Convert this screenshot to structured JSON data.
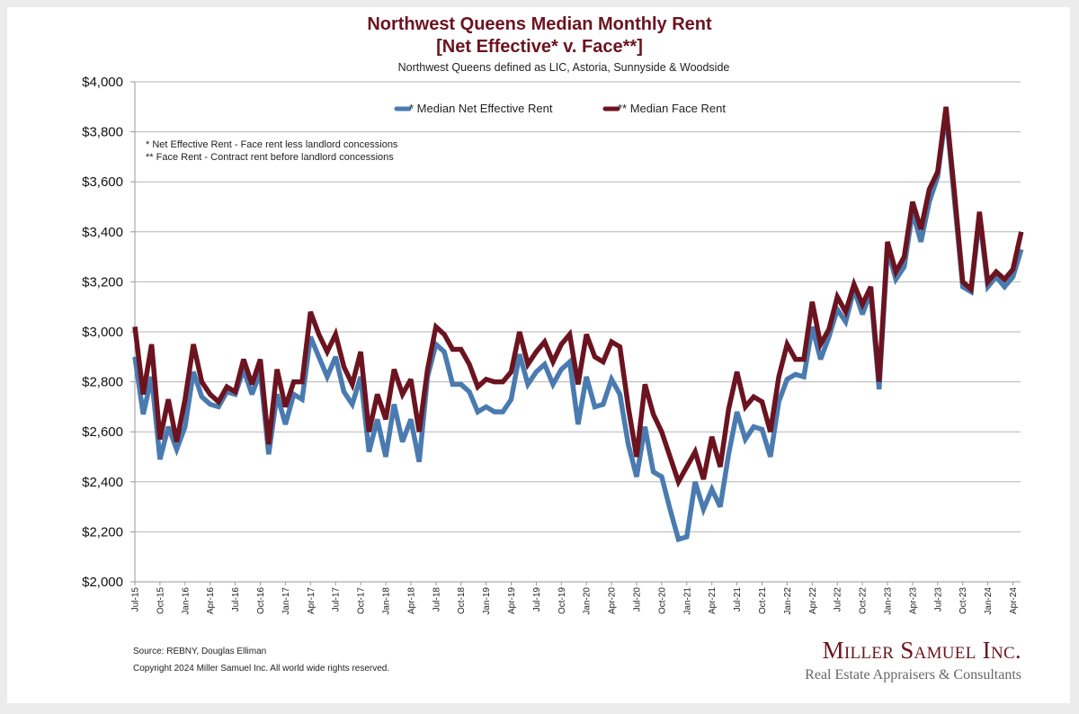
{
  "chart_data": {
    "type": "line",
    "title": "Northwest Queens Median Monthly Rent",
    "title_line2": "[Net Effective* v. Face**]",
    "subtitle": "Northwest Queens defined as LIC, Astoria, Sunnyside & Woodside",
    "xlabel": "",
    "ylabel": "",
    "ylim": [
      2000,
      4000
    ],
    "y_ticks": [
      "$2,000",
      "$2,200",
      "$2,400",
      "$2,600",
      "$2,800",
      "$3,000",
      "$3,200",
      "$3,400",
      "$3,600",
      "$3,800",
      "$4,000"
    ],
    "y_tick_values": [
      2000,
      2200,
      2400,
      2600,
      2800,
      3000,
      3200,
      3400,
      3600,
      3800,
      4000
    ],
    "grid": true,
    "legend_position": "top-center",
    "x_tick_labels": [
      "Jul-15",
      "Oct-15",
      "Jan-16",
      "Apr-16",
      "Jul-16",
      "Oct-16",
      "Jan-17",
      "Apr-17",
      "Jul-17",
      "Oct-17",
      "Jan-18",
      "Apr-18",
      "Jul-18",
      "Oct-18",
      "Jan-19",
      "Apr-19",
      "Jul-19",
      "Oct-19",
      "Jan-20",
      "Apr-20",
      "Jul-20",
      "Oct-20",
      "Jan-21",
      "Apr-21",
      "Jul-21",
      "Oct-21",
      "Jan-22",
      "Apr-22",
      "Jul-22",
      "Oct-22",
      "Jan-23",
      "Apr-23",
      "Jul-23",
      "Oct-23",
      "Jan-24",
      "Apr-24"
    ],
    "x_start": "Jul-15",
    "x_end": "May-24",
    "series": [
      {
        "name": "* Median Net Effective Rent",
        "color": "#4a7bb0",
        "values": [
          2900,
          2670,
          2820,
          2490,
          2620,
          2530,
          2620,
          2840,
          2740,
          2710,
          2700,
          2760,
          2750,
          2850,
          2750,
          2840,
          2510,
          2750,
          2630,
          2750,
          2730,
          2980,
          2900,
          2820,
          2900,
          2760,
          2710,
          2820,
          2520,
          2650,
          2500,
          2710,
          2560,
          2650,
          2480,
          2820,
          2950,
          2920,
          2790,
          2790,
          2760,
          2680,
          2700,
          2680,
          2680,
          2730,
          2910,
          2790,
          2840,
          2870,
          2790,
          2850,
          2880,
          2630,
          2820,
          2700,
          2710,
          2810,
          2750,
          2550,
          2420,
          2620,
          2440,
          2420,
          2290,
          2170,
          2180,
          2400,
          2290,
          2370,
          2300,
          2510,
          2680,
          2570,
          2620,
          2610,
          2500,
          2720,
          2810,
          2830,
          2820,
          3020,
          2890,
          2980,
          3090,
          3040,
          3170,
          3070,
          3160,
          2770,
          3330,
          3210,
          3260,
          3480,
          3360,
          3520,
          3620,
          3880,
          3530,
          3180,
          3160,
          3460,
          3180,
          3220,
          3180,
          3220,
          3330
        ]
      },
      {
        "name": "** Median Face Rent",
        "color": "#6b1420",
        "values": [
          3020,
          2750,
          2950,
          2570,
          2730,
          2560,
          2730,
          2950,
          2800,
          2750,
          2720,
          2780,
          2760,
          2890,
          2790,
          2890,
          2550,
          2850,
          2700,
          2800,
          2800,
          3080,
          2990,
          2920,
          2990,
          2860,
          2790,
          2920,
          2600,
          2750,
          2650,
          2850,
          2750,
          2810,
          2600,
          2850,
          3020,
          2990,
          2930,
          2930,
          2870,
          2780,
          2810,
          2800,
          2800,
          2840,
          3000,
          2870,
          2920,
          2960,
          2880,
          2950,
          2990,
          2790,
          2990,
          2900,
          2880,
          2960,
          2940,
          2700,
          2500,
          2790,
          2670,
          2600,
          2500,
          2400,
          2460,
          2520,
          2410,
          2580,
          2460,
          2690,
          2840,
          2700,
          2740,
          2720,
          2600,
          2820,
          2950,
          2890,
          2890,
          3120,
          2950,
          3010,
          3140,
          3080,
          3190,
          3110,
          3180,
          2800,
          3360,
          3240,
          3300,
          3520,
          3410,
          3570,
          3640,
          3900,
          3560,
          3200,
          3170,
          3480,
          3200,
          3240,
          3210,
          3250,
          3400
        ]
      }
    ],
    "annotations": [
      "* Net Effective Rent - Face rent less landlord concessions",
      "** Face Rent - Contract rent before landlord concessions"
    ]
  },
  "footer": {
    "source": "Source: REBNY, Douglas Elliman",
    "copyright": "Copyright 2024 Miller Samuel Inc.  All world wide rights reserved."
  },
  "brand": {
    "name": "Miller Samuel Inc.",
    "tagline": "Real Estate Appraisers & Consultants"
  }
}
